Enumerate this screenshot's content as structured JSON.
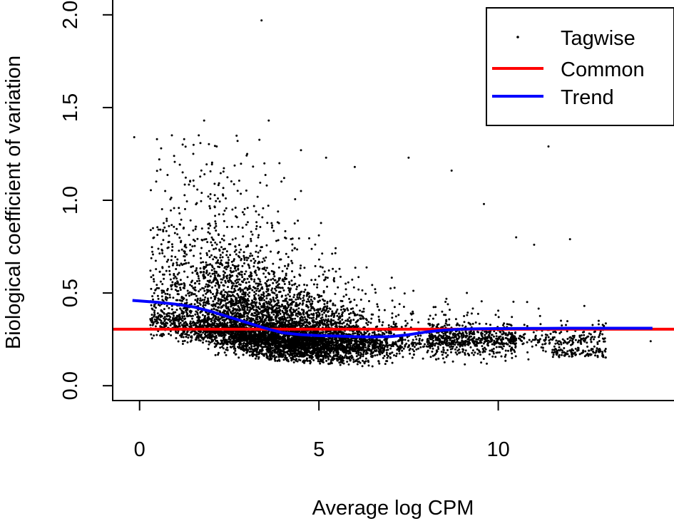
{
  "chart_data": {
    "type": "scatter",
    "title": "",
    "xlabel": "Average log CPM",
    "ylabel": "Biological coefficient of variation",
    "xlim": [
      -0.75,
      14.9
    ],
    "ylim": [
      -0.08,
      2.08
    ],
    "x_ticks": [
      0,
      5,
      10
    ],
    "x_tick_labels": [
      "0",
      "5",
      "10"
    ],
    "y_ticks": [
      0.0,
      0.5,
      1.0,
      1.5,
      2.0
    ],
    "y_tick_labels": [
      "0.0",
      "0.5",
      "1.0",
      "1.5",
      "2.0"
    ],
    "grid": false,
    "legend_position": "top-right",
    "series": [
      {
        "name": "Tagwise",
        "kind": "points",
        "color": "#000000",
        "note_points": [
          [
            -0.15,
            1.34
          ],
          [
            3.4,
            1.97
          ],
          [
            3.6,
            1.43
          ],
          [
            1.8,
            1.43
          ],
          [
            11.4,
            1.29
          ],
          [
            0.9,
            1.35
          ],
          [
            1.65,
            1.35
          ],
          [
            2.15,
            1.29
          ],
          [
            4.5,
            1.27
          ],
          [
            5.2,
            1.23
          ],
          [
            7.5,
            1.23
          ],
          [
            8.7,
            1.16
          ],
          [
            4.5,
            1.05
          ],
          [
            9.6,
            0.98
          ],
          [
            12.0,
            0.79
          ],
          [
            10.5,
            0.8
          ],
          [
            11.0,
            0.76
          ],
          [
            12.4,
            0.43
          ],
          [
            12.8,
            0.35
          ],
          [
            14.25,
            0.24
          ],
          [
            0.6,
            1.28
          ],
          [
            1.2,
            1.3
          ],
          [
            3.0,
            1.25
          ],
          [
            3.9,
            1.2
          ],
          [
            6.0,
            1.18
          ]
        ]
      },
      {
        "name": "Common",
        "kind": "line",
        "color": "#ff0000",
        "y": 0.305
      },
      {
        "name": "Trend",
        "kind": "line",
        "color": "#0000ff",
        "x": [
          -0.2,
          0.5,
          1.0,
          1.5,
          2.0,
          2.5,
          3.0,
          3.5,
          4.0,
          4.5,
          5.0,
          5.5,
          6.0,
          6.5,
          7.0,
          7.5,
          8.0,
          8.5,
          9.0,
          9.5,
          10.0,
          11.0,
          12.0,
          13.0,
          14.3
        ],
        "y": [
          0.46,
          0.45,
          0.44,
          0.425,
          0.4,
          0.37,
          0.34,
          0.31,
          0.285,
          0.275,
          0.27,
          0.268,
          0.265,
          0.263,
          0.265,
          0.275,
          0.29,
          0.3,
          0.305,
          0.307,
          0.308,
          0.309,
          0.31,
          0.31,
          0.31
        ]
      }
    ],
    "legend": [
      {
        "label": "Tagwise",
        "symbol": "point",
        "color": "#000000"
      },
      {
        "label": "Common",
        "symbol": "line",
        "color": "#ff0000"
      },
      {
        "label": "Trend",
        "symbol": "line",
        "color": "#0000ff"
      }
    ]
  }
}
